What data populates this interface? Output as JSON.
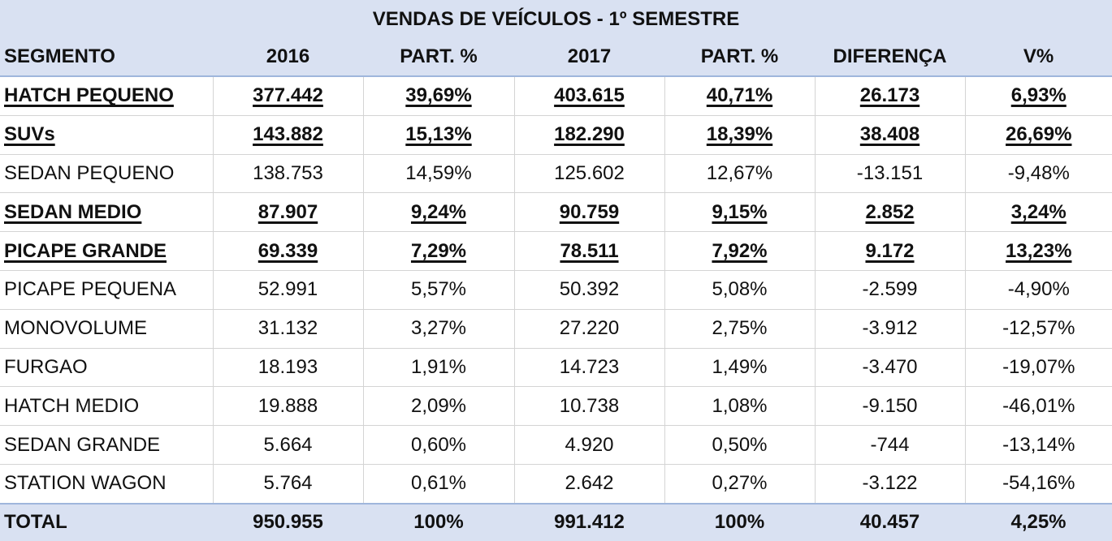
{
  "title": "VENDAS DE VEÍCULOS - 1º SEMESTRE",
  "headers": [
    "SEGMENTO",
    "2016",
    "PART. %",
    "2017",
    "PART. %",
    "DIFERENÇA",
    "V%"
  ],
  "rows": [
    {
      "bold": true,
      "cells": [
        "HATCH PEQUENO",
        "377.442",
        "39,69%",
        "403.615",
        "40,71%",
        "26.173",
        "6,93%"
      ]
    },
    {
      "bold": true,
      "cells": [
        "SUVs",
        "143.882",
        "15,13%",
        "182.290",
        "18,39%",
        "38.408",
        "26,69%"
      ]
    },
    {
      "bold": false,
      "cells": [
        "SEDAN PEQUENO",
        "138.753",
        "14,59%",
        "125.602",
        "12,67%",
        "-13.151",
        "-9,48%"
      ]
    },
    {
      "bold": true,
      "cells": [
        "SEDAN MEDIO",
        "87.907",
        "9,24%",
        "90.759",
        "9,15%",
        "2.852",
        "3,24%"
      ]
    },
    {
      "bold": true,
      "cells": [
        "PICAPE GRANDE",
        "69.339",
        "7,29%",
        "78.511",
        "7,92%",
        "9.172",
        "13,23%"
      ]
    },
    {
      "bold": false,
      "cells": [
        "PICAPE PEQUENA",
        "52.991",
        "5,57%",
        "50.392",
        "5,08%",
        "-2.599",
        "-4,90%"
      ]
    },
    {
      "bold": false,
      "cells": [
        "MONOVOLUME",
        "31.132",
        "3,27%",
        "27.220",
        "2,75%",
        "-3.912",
        "-12,57%"
      ]
    },
    {
      "bold": false,
      "cells": [
        "FURGAO",
        "18.193",
        "1,91%",
        "14.723",
        "1,49%",
        "-3.470",
        "-19,07%"
      ]
    },
    {
      "bold": false,
      "cells": [
        "HATCH MEDIO",
        "19.888",
        "2,09%",
        "10.738",
        "1,08%",
        "-9.150",
        "-46,01%"
      ]
    },
    {
      "bold": false,
      "cells": [
        "SEDAN GRANDE",
        "5.664",
        "0,60%",
        "4.920",
        "0,50%",
        "-744",
        "-13,14%"
      ]
    },
    {
      "bold": false,
      "cells": [
        "STATION WAGON",
        "5.764",
        "0,61%",
        "2.642",
        "0,27%",
        "-3.122",
        "-54,16%"
      ]
    }
  ],
  "total": [
    "TOTAL",
    "950.955",
    "100%",
    "991.412",
    "100%",
    "40.457",
    "4,25%"
  ],
  "colors": {
    "header_bg": "#d9e1f2",
    "grid": "#d4d4d4",
    "header_border": "#9fb6dc"
  }
}
